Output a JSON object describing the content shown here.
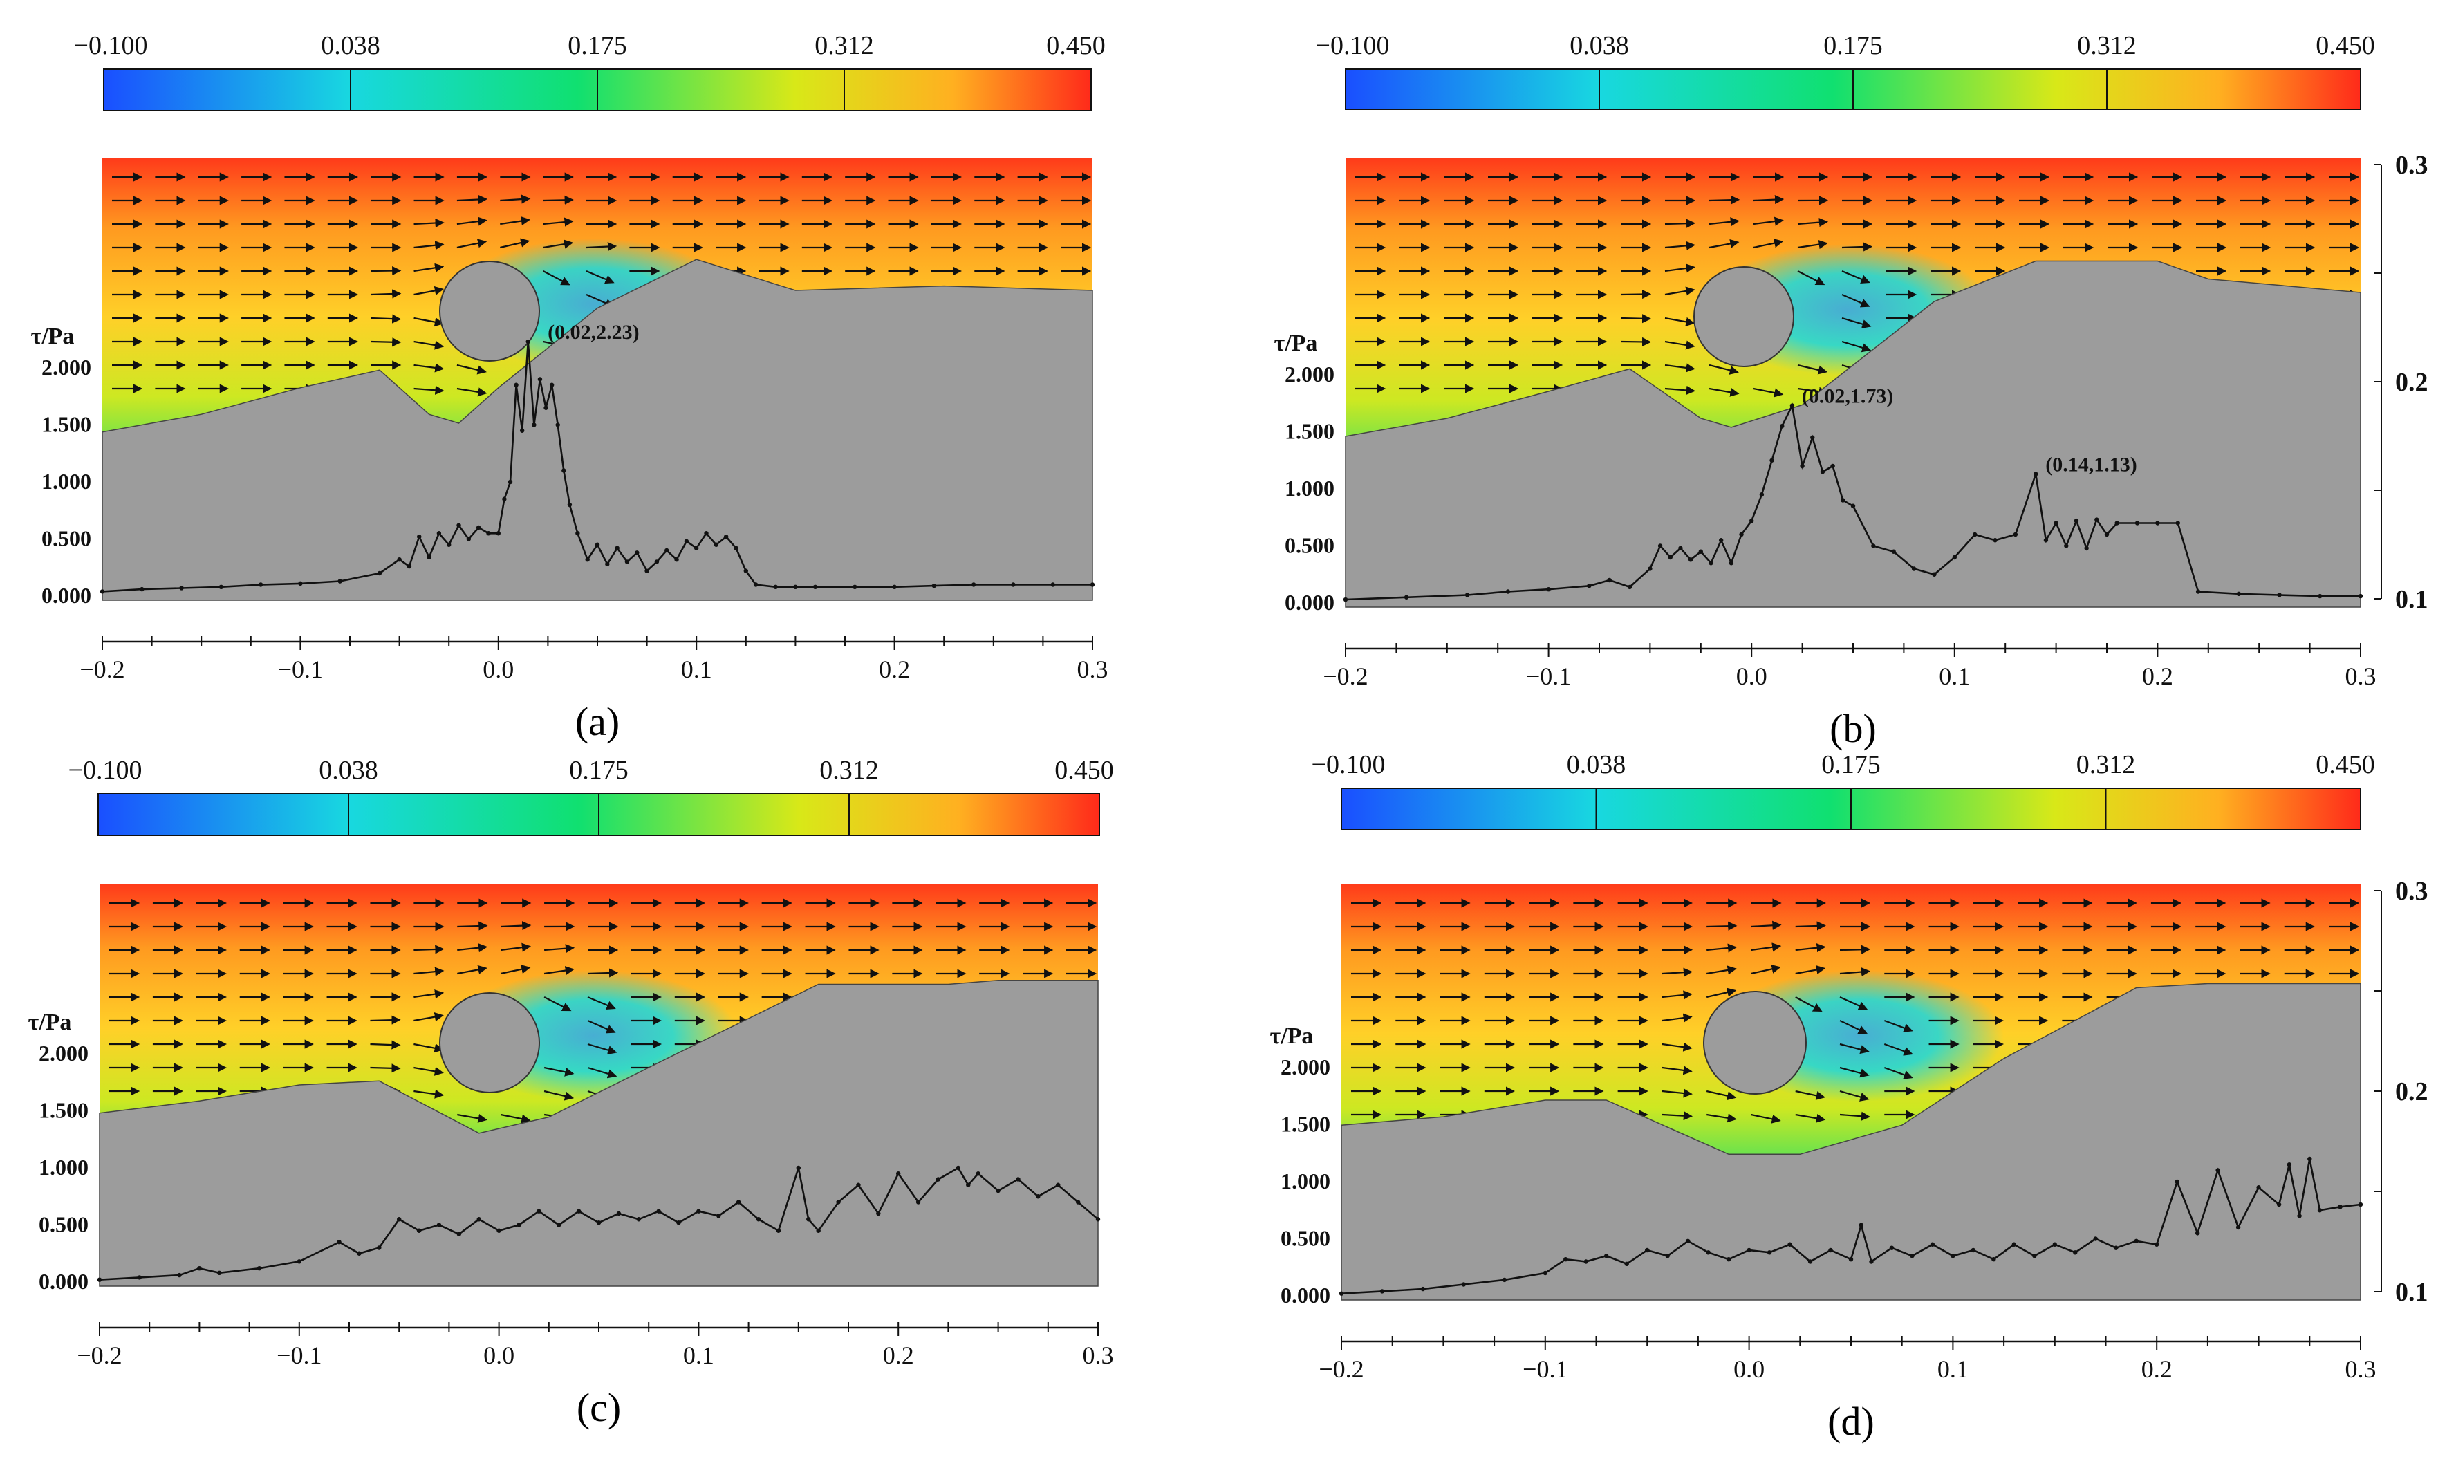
{
  "colors": {
    "scale": [
      "#1a4fff",
      "#18d8e0",
      "#10e070",
      "#d8e818",
      "#ffb020",
      "#ff2a1a"
    ],
    "soil": "#9c9c9c",
    "line": "#111111"
  },
  "colorbar": {
    "labels": [
      "-0.100",
      "0.038",
      "0.175",
      "0.312",
      "0.450"
    ]
  },
  "tau_axis": {
    "title": "τ/Pa",
    "ticks": [
      "0.000",
      "0.500",
      "1.000",
      "1.500",
      "2.000"
    ]
  },
  "x_axis": {
    "ticks": [
      "-0.2",
      "-0.1",
      "0.0",
      "0.1",
      "0.2",
      "0.3"
    ]
  },
  "right_axis": {
    "ticks": [
      "0.1",
      "0.2",
      "0.3"
    ]
  },
  "panels": [
    {
      "id": "a",
      "caption": "(a)",
      "annotations": [
        {
          "text": "(0.02,2.23)",
          "x": 0.02,
          "y": 2.23
        }
      ]
    },
    {
      "id": "b",
      "caption": "(b)",
      "annotations": [
        {
          "text": "(0.02,1.73)",
          "x": 0.02,
          "y": 1.73
        },
        {
          "text": "(0.14,1.13)",
          "x": 0.14,
          "y": 1.13
        }
      ]
    },
    {
      "id": "c",
      "caption": "(c)",
      "annotations": []
    },
    {
      "id": "d",
      "caption": "(d)",
      "annotations": []
    }
  ],
  "chart_data": [
    {
      "type": "line",
      "panel": "a",
      "title": "(a)",
      "xlabel": "",
      "ylabel": "τ/Pa",
      "xlim": [
        -0.2,
        0.3
      ],
      "ylim": [
        0,
        2.5
      ],
      "colorbar_range": [
        -0.1,
        0.45
      ],
      "series": [
        {
          "name": "τ/Pa",
          "x": [
            -0.2,
            -0.18,
            -0.16,
            -0.14,
            -0.12,
            -0.1,
            -0.08,
            -0.06,
            -0.05,
            -0.045,
            -0.04,
            -0.035,
            -0.03,
            -0.025,
            -0.02,
            -0.015,
            -0.01,
            -0.005,
            0.0,
            0.003,
            0.006,
            0.009,
            0.012,
            0.015,
            0.018,
            0.021,
            0.024,
            0.027,
            0.03,
            0.033,
            0.036,
            0.04,
            0.045,
            0.05,
            0.055,
            0.06,
            0.065,
            0.07,
            0.075,
            0.08,
            0.085,
            0.09,
            0.095,
            0.1,
            0.105,
            0.11,
            0.115,
            0.12,
            0.125,
            0.13,
            0.14,
            0.15,
            0.16,
            0.18,
            0.2,
            0.22,
            0.24,
            0.26,
            0.28,
            0.3
          ],
          "y": [
            0.04,
            0.06,
            0.07,
            0.08,
            0.1,
            0.11,
            0.13,
            0.2,
            0.32,
            0.26,
            0.52,
            0.34,
            0.55,
            0.45,
            0.62,
            0.5,
            0.6,
            0.55,
            0.55,
            0.85,
            1.0,
            1.85,
            1.45,
            2.23,
            1.5,
            1.9,
            1.65,
            1.85,
            1.5,
            1.1,
            0.8,
            0.55,
            0.32,
            0.45,
            0.28,
            0.42,
            0.3,
            0.38,
            0.22,
            0.3,
            0.4,
            0.32,
            0.48,
            0.42,
            0.55,
            0.45,
            0.52,
            0.42,
            0.22,
            0.1,
            0.08,
            0.08,
            0.08,
            0.08,
            0.08,
            0.09,
            0.1,
            0.1,
            0.1,
            0.1
          ]
        }
      ]
    },
    {
      "type": "line",
      "panel": "b",
      "title": "(b)",
      "xlabel": "",
      "ylabel": "τ/Pa",
      "xlim": [
        -0.2,
        0.3
      ],
      "ylim": [
        0,
        2.5
      ],
      "colorbar_range": [
        -0.1,
        0.45
      ],
      "series": [
        {
          "name": "τ/Pa",
          "x": [
            -0.2,
            -0.17,
            -0.14,
            -0.12,
            -0.1,
            -0.08,
            -0.07,
            -0.06,
            -0.05,
            -0.045,
            -0.04,
            -0.035,
            -0.03,
            -0.025,
            -0.02,
            -0.015,
            -0.01,
            -0.005,
            0.0,
            0.005,
            0.01,
            0.015,
            0.02,
            0.025,
            0.03,
            0.035,
            0.04,
            0.045,
            0.05,
            0.06,
            0.07,
            0.08,
            0.09,
            0.1,
            0.11,
            0.12,
            0.13,
            0.14,
            0.145,
            0.15,
            0.155,
            0.16,
            0.165,
            0.17,
            0.175,
            0.18,
            0.19,
            0.2,
            0.21,
            0.22,
            0.24,
            0.26,
            0.28,
            0.3
          ],
          "y": [
            0.03,
            0.05,
            0.07,
            0.1,
            0.12,
            0.15,
            0.2,
            0.14,
            0.3,
            0.5,
            0.4,
            0.48,
            0.38,
            0.45,
            0.35,
            0.55,
            0.35,
            0.6,
            0.72,
            0.95,
            1.25,
            1.55,
            1.73,
            1.2,
            1.45,
            1.15,
            1.2,
            0.9,
            0.85,
            0.5,
            0.45,
            0.3,
            0.25,
            0.4,
            0.6,
            0.55,
            0.6,
            1.13,
            0.55,
            0.7,
            0.5,
            0.72,
            0.48,
            0.73,
            0.6,
            0.7,
            0.7,
            0.7,
            0.7,
            0.1,
            0.08,
            0.07,
            0.06,
            0.06
          ]
        }
      ]
    },
    {
      "type": "line",
      "panel": "c",
      "title": "(c)",
      "xlabel": "",
      "ylabel": "τ/Pa",
      "xlim": [
        -0.2,
        0.3
      ],
      "ylim": [
        0,
        2.5
      ],
      "colorbar_range": [
        -0.1,
        0.45
      ],
      "series": [
        {
          "name": "τ/Pa",
          "x": [
            -0.2,
            -0.18,
            -0.16,
            -0.15,
            -0.14,
            -0.12,
            -0.1,
            -0.08,
            -0.07,
            -0.06,
            -0.05,
            -0.04,
            -0.03,
            -0.02,
            -0.01,
            0.0,
            0.01,
            0.02,
            0.03,
            0.04,
            0.05,
            0.06,
            0.07,
            0.08,
            0.09,
            0.1,
            0.11,
            0.12,
            0.13,
            0.14,
            0.15,
            0.155,
            0.16,
            0.17,
            0.18,
            0.19,
            0.2,
            0.21,
            0.22,
            0.23,
            0.235,
            0.24,
            0.25,
            0.26,
            0.27,
            0.28,
            0.29,
            0.3
          ],
          "y": [
            0.02,
            0.04,
            0.06,
            0.12,
            0.08,
            0.12,
            0.18,
            0.35,
            0.25,
            0.3,
            0.55,
            0.45,
            0.5,
            0.42,
            0.55,
            0.45,
            0.5,
            0.62,
            0.5,
            0.62,
            0.52,
            0.6,
            0.55,
            0.62,
            0.52,
            0.62,
            0.58,
            0.7,
            0.55,
            0.45,
            1.0,
            0.55,
            0.45,
            0.7,
            0.85,
            0.6,
            0.95,
            0.7,
            0.9,
            1.0,
            0.85,
            0.95,
            0.8,
            0.9,
            0.75,
            0.85,
            0.7,
            0.55
          ]
        }
      ]
    },
    {
      "type": "line",
      "panel": "d",
      "title": "(d)",
      "xlabel": "",
      "ylabel": "τ/Pa",
      "xlim": [
        -0.2,
        0.3
      ],
      "ylim": [
        0,
        2.5
      ],
      "colorbar_range": [
        -0.1,
        0.45
      ],
      "series": [
        {
          "name": "τ/Pa",
          "x": [
            -0.2,
            -0.18,
            -0.16,
            -0.14,
            -0.12,
            -0.1,
            -0.09,
            -0.08,
            -0.07,
            -0.06,
            -0.05,
            -0.04,
            -0.03,
            -0.02,
            -0.01,
            0.0,
            0.01,
            0.02,
            0.03,
            0.04,
            0.05,
            0.055,
            0.06,
            0.07,
            0.08,
            0.09,
            0.1,
            0.11,
            0.12,
            0.13,
            0.14,
            0.15,
            0.16,
            0.17,
            0.18,
            0.19,
            0.2,
            0.21,
            0.22,
            0.23,
            0.24,
            0.25,
            0.26,
            0.265,
            0.27,
            0.275,
            0.28,
            0.29,
            0.3
          ],
          "y": [
            0.02,
            0.04,
            0.06,
            0.1,
            0.14,
            0.2,
            0.32,
            0.3,
            0.35,
            0.28,
            0.4,
            0.35,
            0.48,
            0.38,
            0.32,
            0.4,
            0.38,
            0.45,
            0.3,
            0.4,
            0.32,
            0.62,
            0.3,
            0.42,
            0.35,
            0.45,
            0.35,
            0.4,
            0.32,
            0.45,
            0.35,
            0.45,
            0.38,
            0.5,
            0.42,
            0.48,
            0.45,
            1.0,
            0.55,
            1.1,
            0.6,
            0.95,
            0.8,
            1.15,
            0.7,
            1.2,
            0.75,
            0.78,
            0.8
          ]
        }
      ]
    }
  ]
}
